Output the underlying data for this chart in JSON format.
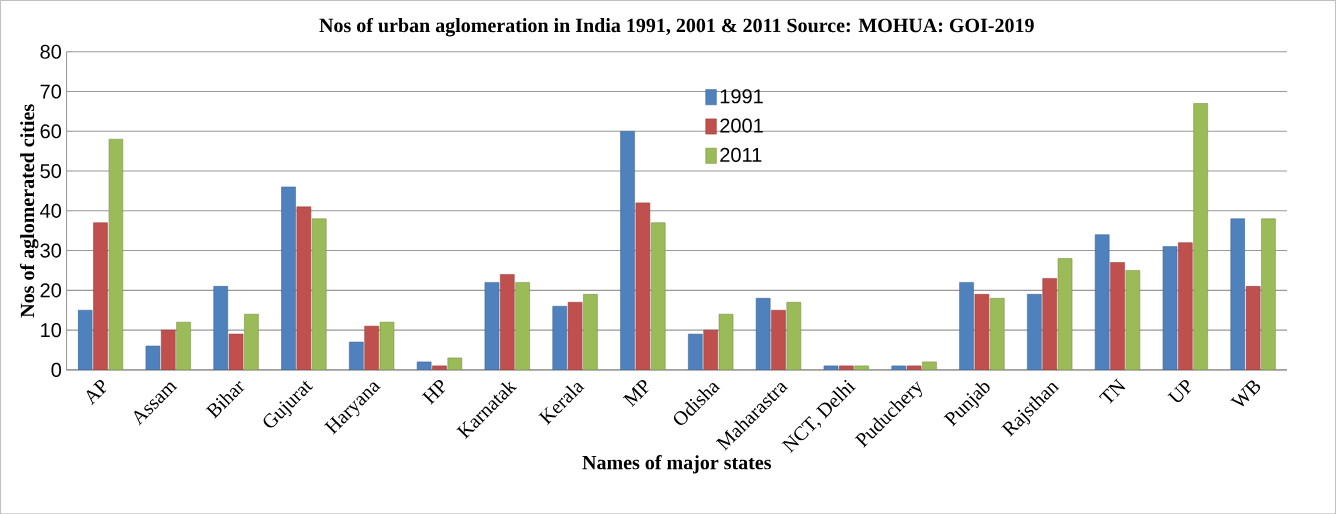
{
  "chart_data": {
    "type": "bar",
    "title": "Nos of urban aglomeration in India 1991, 2001 & 2011 Source: MOHUA: GOI-2019",
    "xlabel": "Names of major states",
    "ylabel": "Nos of aglomerated cities",
    "categories": [
      "AP",
      "Assam",
      "Bihar",
      "Gujurat",
      "Haryana",
      "HP",
      "Karnatak",
      "Kerala",
      "MP",
      "Odisha",
      "Maharastra",
      "NCT, Delhi",
      "Puduchery",
      "Punjab",
      "Rajsthan",
      "TN",
      "UP",
      "WB"
    ],
    "series": [
      {
        "name": "1991",
        "color": "#4f81bd",
        "values": [
          15,
          6,
          21,
          46,
          7,
          2,
          22,
          16,
          60,
          9,
          18,
          1,
          1,
          22,
          19,
          34,
          31,
          38
        ]
      },
      {
        "name": "2001",
        "color": "#c0504d",
        "values": [
          37,
          10,
          9,
          41,
          11,
          1,
          24,
          17,
          42,
          10,
          15,
          1,
          1,
          19,
          23,
          27,
          32,
          21
        ]
      },
      {
        "name": "2011",
        "color": "#9bbb59",
        "values": [
          58,
          12,
          14,
          38,
          12,
          3,
          22,
          19,
          37,
          14,
          17,
          1,
          2,
          18,
          28,
          25,
          67,
          38
        ]
      }
    ],
    "ylim": [
      0,
      80
    ],
    "yticks": [
      0,
      10,
      20,
      30,
      40,
      50,
      60,
      70,
      80
    ],
    "grid": "y",
    "legend": "top"
  }
}
